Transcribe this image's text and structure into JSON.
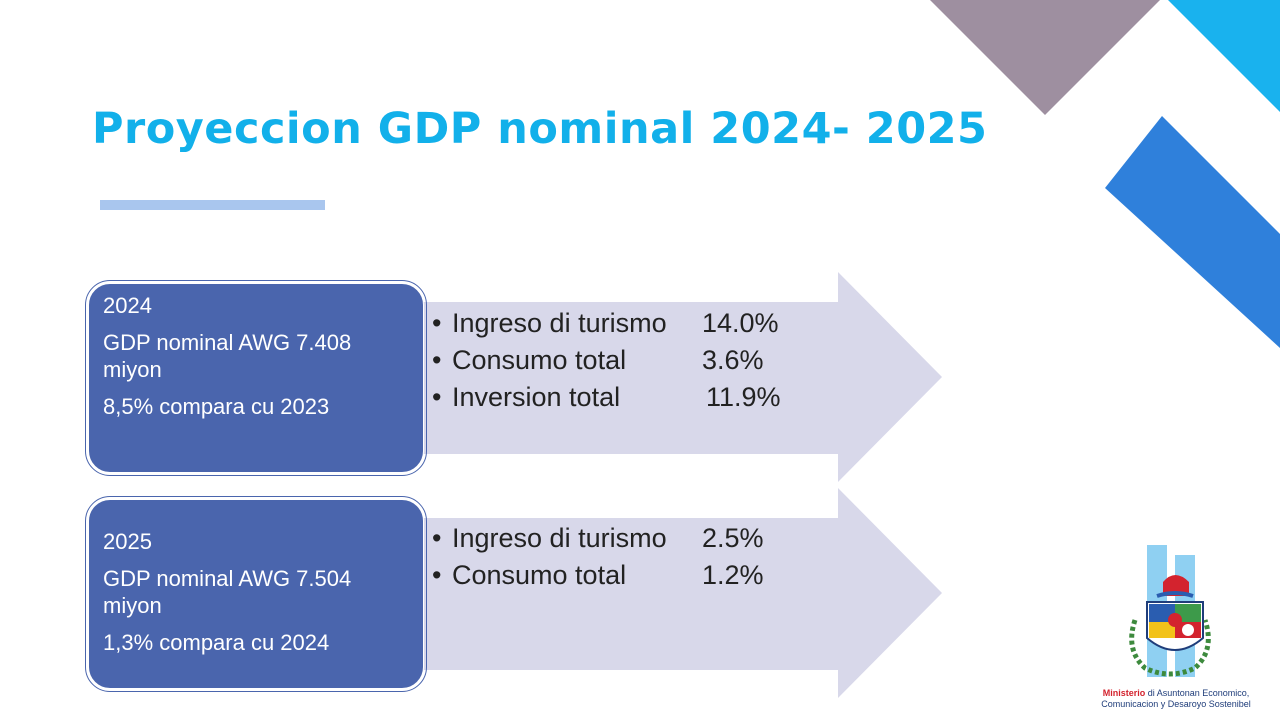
{
  "slide": {
    "title": "Proyeccion GDP nominal 2024- 2025"
  },
  "colors": {
    "title": "#12b0ea",
    "box_fill": "#4a65ad",
    "arrow_fill": "#d8d8ea",
    "accent_purple": "#9e8fa0",
    "accent_cyan": "#19b2ee",
    "accent_blue": "#2f80db",
    "underline": "#a9c6ee"
  },
  "projections": [
    {
      "year": "2024",
      "gdp_line1": "GDP nominal AWG 7.408",
      "gdp_line2": "miyon",
      "comparison": "8,5% compara cu 2023",
      "drivers": [
        {
          "label": "Ingreso di turismo",
          "value": "14.0%"
        },
        {
          "label": "Consumo total",
          "value": "3.6%"
        },
        {
          "label": "Inversion total",
          "value": "11.9%"
        }
      ]
    },
    {
      "year": "2025",
      "gdp_line1": "GDP nominal AWG 7.504",
      "gdp_line2": "miyon",
      "comparison": "1,3% compara cu 2024",
      "drivers": [
        {
          "label": "Ingreso di turismo",
          "value": "2.5%"
        },
        {
          "label": "Consumo total",
          "value": "1.2%"
        }
      ]
    }
  ],
  "ministry": {
    "name_highlight": "Ministerio",
    "name_rest": " di Asuntonan Economico,",
    "name_line2": "Comunicacion y Desaroyo Sostenibel"
  }
}
